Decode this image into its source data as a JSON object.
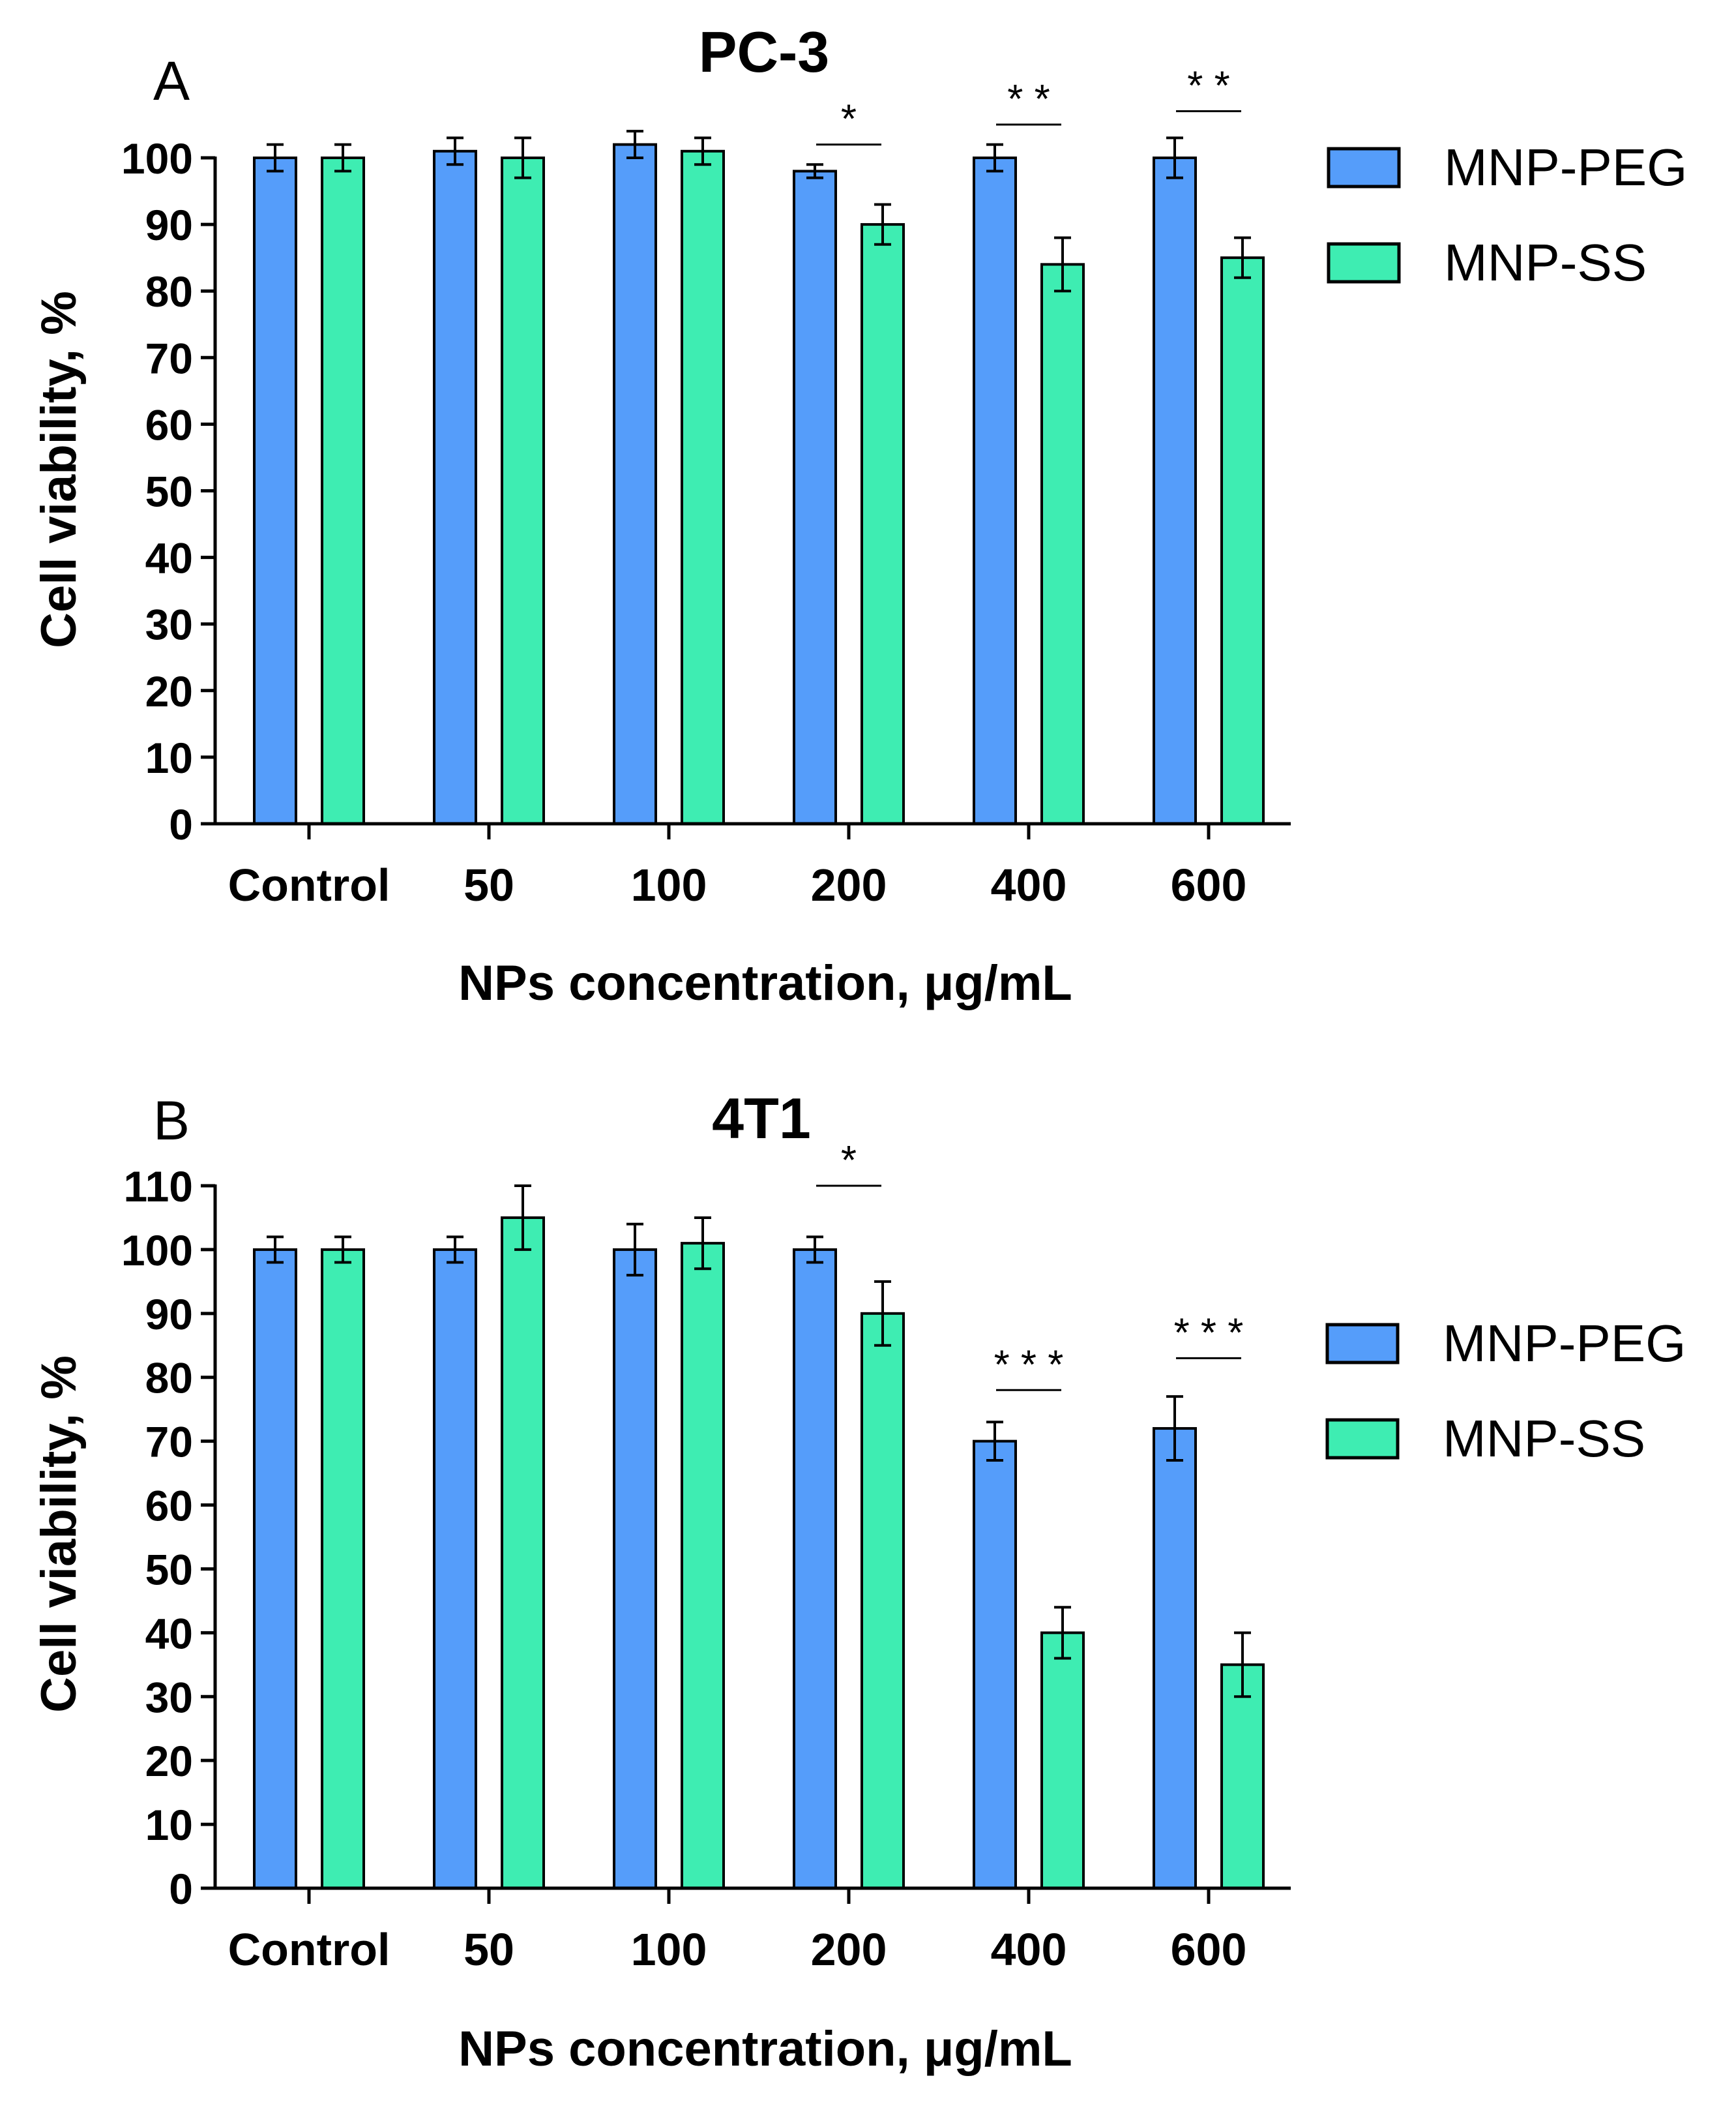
{
  "legend_labels": {
    "peg": "MNP-PEG",
    "ss": "MNP-SS"
  },
  "colors": {
    "peg": "#559dfa",
    "ss": "#3eedb2",
    "axis": "#000000"
  },
  "chart_data": [
    {
      "panel_label": "A",
      "type": "bar",
      "title": "PC-3",
      "xlabel": "NPs concentration, μg/mL",
      "ylabel": "Cell viability, %",
      "categories": [
        "Control",
        "50",
        "100",
        "200",
        "400",
        "600"
      ],
      "ylim": [
        0,
        100
      ],
      "yticks": [
        0,
        10,
        20,
        30,
        40,
        50,
        60,
        70,
        80,
        90,
        100
      ],
      "legend_position": "upper-right-outside",
      "series": [
        {
          "name": "MNP-PEG",
          "values": [
            100,
            101,
            102,
            98,
            100,
            100
          ],
          "errors": [
            2,
            2,
            2,
            1,
            2,
            3
          ]
        },
        {
          "name": "MNP-SS",
          "values": [
            100,
            100,
            101,
            90,
            84,
            85
          ],
          "errors": [
            2,
            3,
            2,
            3,
            4,
            3
          ]
        }
      ],
      "significance": [
        {
          "category_index": 3,
          "label": "*",
          "y": 102
        },
        {
          "category_index": 4,
          "label": "* *",
          "y": 105
        },
        {
          "category_index": 5,
          "label": "* *",
          "y": 107
        }
      ]
    },
    {
      "panel_label": "B",
      "type": "bar",
      "title": "4T1",
      "xlabel": "NPs concentration, μg/mL",
      "ylabel": "Cell viability, %",
      "categories": [
        "Control",
        "50",
        "100",
        "200",
        "400",
        "600"
      ],
      "ylim": [
        0,
        110
      ],
      "yticks": [
        0,
        10,
        20,
        30,
        40,
        50,
        60,
        70,
        80,
        90,
        100,
        110
      ],
      "legend_position": "right-outside",
      "series": [
        {
          "name": "MNP-PEG",
          "values": [
            100,
            100,
            100,
            100,
            70,
            72
          ],
          "errors": [
            2,
            2,
            4,
            2,
            3,
            5
          ]
        },
        {
          "name": "MNP-SS",
          "values": [
            100,
            105,
            101,
            90,
            40,
            35
          ],
          "errors": [
            2,
            5,
            4,
            5,
            4,
            5
          ]
        }
      ],
      "significance": [
        {
          "category_index": 3,
          "label": "*",
          "y": 110
        },
        {
          "category_index": 4,
          "label": "* * *",
          "y": 78
        },
        {
          "category_index": 5,
          "label": "* * *",
          "y": 83
        }
      ]
    }
  ]
}
